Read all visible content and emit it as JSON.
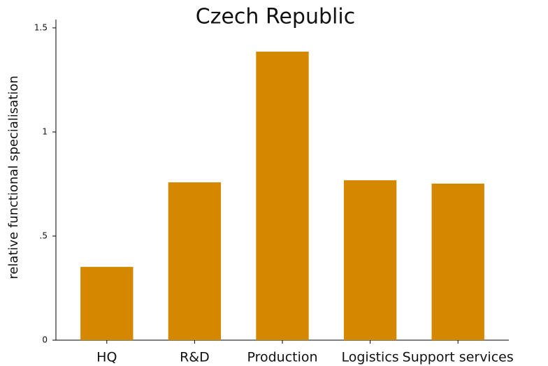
{
  "chart_data": {
    "type": "bar",
    "title": "Czech Republic",
    "y_label": "relative functional specialisation",
    "categories": [
      "HQ",
      "R&D",
      "Production",
      "Logistics",
      "Support services"
    ],
    "values": [
      0.352,
      0.758,
      1.386,
      0.768,
      0.752
    ],
    "color": "#d48800",
    "ylim": [
      0,
      1.54
    ],
    "yticks": [
      0,
      {
        "value": 0.5,
        "label": ".5"
      },
      1,
      1.5
    ],
    "grid": false
  }
}
